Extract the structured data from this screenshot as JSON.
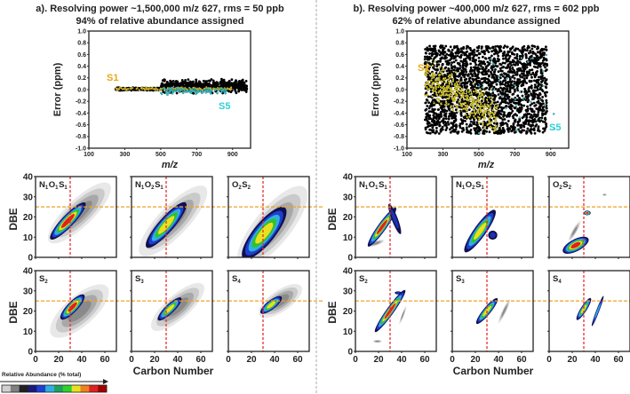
{
  "chart_data": [
    {
      "type": "scatter",
      "panel": "a",
      "title": "a). Resolving power ~1,500,000 m/z 627, rms = 50 ppb",
      "subtitle": "94% of relative abundance assigned",
      "xlabel": "m/z",
      "ylabel": "Error (ppm)",
      "xlim": [
        100,
        1000
      ],
      "ylim": [
        -1.0,
        1.0
      ],
      "xticks": [
        "100",
        "300",
        "500",
        "700",
        "900"
      ],
      "yticks": [
        "1.0",
        "0.8",
        "0.6",
        "0.4",
        "0.2",
        "0.0",
        "-0.2",
        "-0.4",
        "-0.6",
        "-0.8",
        "-1.0"
      ],
      "series": [
        {
          "color": "#000000",
          "mz_range": [
            250,
            980
          ],
          "error_range": [
            -0.08,
            0.2
          ],
          "count": 900
        },
        {
          "name": "S1",
          "color": "#e8c21a",
          "mz_range": [
            250,
            900
          ],
          "error_range": [
            -0.02,
            0.05
          ],
          "count": 160
        },
        {
          "name": "S5",
          "color": "#2fd0d8",
          "mz_range": [
            500,
            880
          ],
          "error_range": [
            -0.1,
            0.05
          ],
          "count": 120
        }
      ],
      "annotations": [
        {
          "text": "S1",
          "color": "#e8a81a"
        },
        {
          "text": "S5",
          "color": "#2fd0d8"
        }
      ]
    },
    {
      "type": "scatter",
      "panel": "b",
      "title": "b). Resolving power ~400,000 m/z 627, rms = 602 ppb",
      "subtitle": "62% of relative abundance assigned",
      "xlabel": "m/z",
      "ylabel": "Error (ppm)",
      "xlim": [
        100,
        1000
      ],
      "ylim": [
        -1.0,
        1.0
      ],
      "xticks": [
        "100",
        "300",
        "500",
        "700",
        "900"
      ],
      "yticks": [
        "1.0",
        "0.8",
        "0.6",
        "0.4",
        "0.2",
        "0.0",
        "-0.2",
        "-0.4",
        "-0.6",
        "-0.8",
        "-1.0"
      ],
      "series": [
        {
          "color": "#000000",
          "mz_range": [
            200,
            880
          ],
          "error_range": [
            -0.75,
            0.75
          ],
          "count": 2200
        },
        {
          "name": "S1",
          "color": "#e8d81a",
          "mz_range": [
            200,
            600
          ],
          "error_range": [
            -0.75,
            0.75
          ],
          "count": 380
        },
        {
          "name": "S5",
          "color": "#2fd0d8",
          "mz_range": [
            500,
            920
          ],
          "error_range": [
            -0.75,
            0.6
          ],
          "count": 30
        }
      ],
      "annotations": [
        {
          "text": "S1",
          "color": "#e8a81a"
        },
        {
          "text": "S5",
          "color": "#2fd0d8"
        }
      ]
    },
    {
      "type": "heatmap",
      "panel": "a",
      "xlabel": "Carbon Number",
      "ylabel": "DBE",
      "xlim": [
        0,
        70
      ],
      "ylim": [
        0,
        40
      ],
      "xticks": [
        "0",
        "20",
        "40",
        "60"
      ],
      "yticks": [
        "0",
        "10",
        "20",
        "30",
        "40"
      ],
      "reference_lines": {
        "carbon_number": 30,
        "dbe": 25
      },
      "classes": [
        {
          "label": "N1O1S1",
          "blobs": [
            {
              "c": [
                38,
                22
              ],
              "len": 26,
              "wid": 9,
              "slope": 0.55,
              "level": 0
            },
            {
              "c": [
                28,
                18
              ],
              "len": 15,
              "wid": 4,
              "slope": 0.6,
              "level": 5
            }
          ]
        },
        {
          "label": "N1O2S1",
          "blobs": [
            {
              "c": [
                36,
                18
              ],
              "len": 28,
              "wid": 10,
              "slope": 0.6,
              "level": 0
            },
            {
              "c": [
                30,
                16
              ],
              "len": 17,
              "wid": 5,
              "slope": 0.65,
              "level": 4
            }
          ]
        },
        {
          "label": "O2S2",
          "blobs": [
            {
              "c": [
                38,
                15
              ],
              "len": 28,
              "wid": 12,
              "slope": 0.7,
              "level": 0
            },
            {
              "c": [
                31,
                12
              ],
              "len": 18,
              "wid": 7,
              "slope": 0.7,
              "level": 4
            }
          ]
        },
        {
          "label": "S2",
          "blobs": [
            {
              "c": [
                38,
                20
              ],
              "len": 24,
              "wid": 10,
              "slope": 0.5,
              "level": 0
            },
            {
              "c": [
                32,
                22
              ],
              "len": 10,
              "wid": 3.5,
              "slope": 0.6,
              "level": 5
            }
          ]
        },
        {
          "label": "S3",
          "blobs": [
            {
              "c": [
                40,
                22
              ],
              "len": 22,
              "wid": 8,
              "slope": 0.5,
              "level": 0
            },
            {
              "c": [
                33,
                21
              ],
              "len": 10,
              "wid": 3,
              "slope": 0.55,
              "level": 4
            }
          ]
        },
        {
          "label": "S4",
          "blobs": [
            {
              "c": [
                45,
                25
              ],
              "len": 18,
              "wid": 7,
              "slope": 0.4,
              "level": 0
            },
            {
              "c": [
                37,
                23
              ],
              "len": 9,
              "wid": 3,
              "slope": 0.45,
              "level": 4
            }
          ]
        }
      ]
    },
    {
      "type": "heatmap",
      "panel": "b",
      "xlabel": "Carbon Number",
      "ylabel": "DBE",
      "xlim": [
        0,
        70
      ],
      "ylim": [
        0,
        40
      ],
      "xticks": [
        "0",
        "20",
        "40",
        "60"
      ],
      "yticks": [
        "0",
        "10",
        "20",
        "30",
        "40"
      ],
      "reference_lines": {
        "carbon_number": 30,
        "dbe": 25
      },
      "classes": [
        {
          "label": "N1O1S1",
          "blobs": [
            {
              "c": [
                18,
                7
              ],
              "len": 7,
              "wid": 1.5,
              "slope": 0.2,
              "level": 0
            },
            {
              "c": [
                23,
                15
              ],
              "len": 12,
              "wid": 2.8,
              "slope": 0.8,
              "level": 5
            },
            {
              "c": [
                34,
                19
              ],
              "len": 5,
              "wid": 2,
              "slope": -1.5,
              "level": 1
            }
          ]
        },
        {
          "label": "N1O2S1",
          "blobs": [
            {
              "c": [
                24,
                13
              ],
              "len": 13,
              "wid": 4,
              "slope": 0.8,
              "level": 4
            },
            {
              "c": [
                35,
                11
              ],
              "len": 4,
              "wid": 3,
              "slope": 0,
              "level": 1
            }
          ]
        },
        {
          "label": "O2S2",
          "blobs": [
            {
              "c": [
                22,
                13
              ],
              "len": 5,
              "wid": 1.5,
              "slope": 1.0,
              "level": 0
            },
            {
              "c": [
                23,
                6
              ],
              "len": 11,
              "wid": 4,
              "slope": 0.3,
              "level": 5
            },
            {
              "c": [
                33,
                22
              ],
              "len": 3,
              "wid": 1.5,
              "slope": 0,
              "level": 5
            },
            {
              "c": [
                48,
                31
              ],
              "len": 2,
              "wid": 0.8,
              "slope": 0,
              "level": 0
            }
          ]
        },
        {
          "label": "S2",
          "blobs": [
            {
              "c": [
                19,
                5
              ],
              "len": 4,
              "wid": 1,
              "slope": 0,
              "level": 0
            },
            {
              "c": [
                30,
                20
              ],
              "len": 13,
              "wid": 2.5,
              "slope": 0.8,
              "level": 5
            },
            {
              "c": [
                37,
                29
              ],
              "len": 3,
              "wid": 1,
              "slope": 0,
              "level": 1
            },
            {
              "c": [
                41,
                18
              ],
              "len": 3,
              "wid": 0.8,
              "slope": 1.5,
              "level": 0
            }
          ]
        },
        {
          "label": "S3",
          "blobs": [
            {
              "c": [
                30,
                20
              ],
              "len": 9,
              "wid": 2.5,
              "slope": 0.7,
              "level": 4
            },
            {
              "c": [
                45,
                20
              ],
              "len": 5,
              "wid": 1.3,
              "slope": 1.2,
              "level": 0
            }
          ]
        },
        {
          "label": "S4",
          "blobs": [
            {
              "c": [
                30,
                21
              ],
              "len": 6,
              "wid": 2,
              "slope": 0.9,
              "level": 4
            },
            {
              "c": [
                42,
                20
              ],
              "len": 5,
              "wid": 1,
              "slope": 1.5,
              "level": 2
            }
          ]
        }
      ]
    }
  ],
  "colorbar": {
    "label": "Relative Abundance (% total)",
    "colors": [
      "#d0d0d0",
      "#808080",
      "#202020",
      "#1a1a7a",
      "#1f3fd0",
      "#2fb0e0",
      "#20a060",
      "#30d030",
      "#e8e020",
      "#f08020",
      "#e02020",
      "#a00000"
    ]
  },
  "class_label_parts": [
    [
      [
        "N",
        "1"
      ],
      [
        "O",
        "1"
      ],
      [
        "S",
        "1"
      ]
    ],
    [
      [
        "N",
        "1"
      ],
      [
        "O",
        "2"
      ],
      [
        "S",
        "1"
      ]
    ],
    [
      [
        "O",
        "2"
      ],
      [
        "S",
        "2"
      ]
    ],
    [
      [
        "S",
        "2"
      ]
    ],
    [
      [
        "S",
        "3"
      ]
    ],
    [
      [
        "S",
        "4"
      ]
    ]
  ],
  "ref_colors": {
    "carbon_number": "#e83030",
    "dbe": "#f0a020"
  }
}
